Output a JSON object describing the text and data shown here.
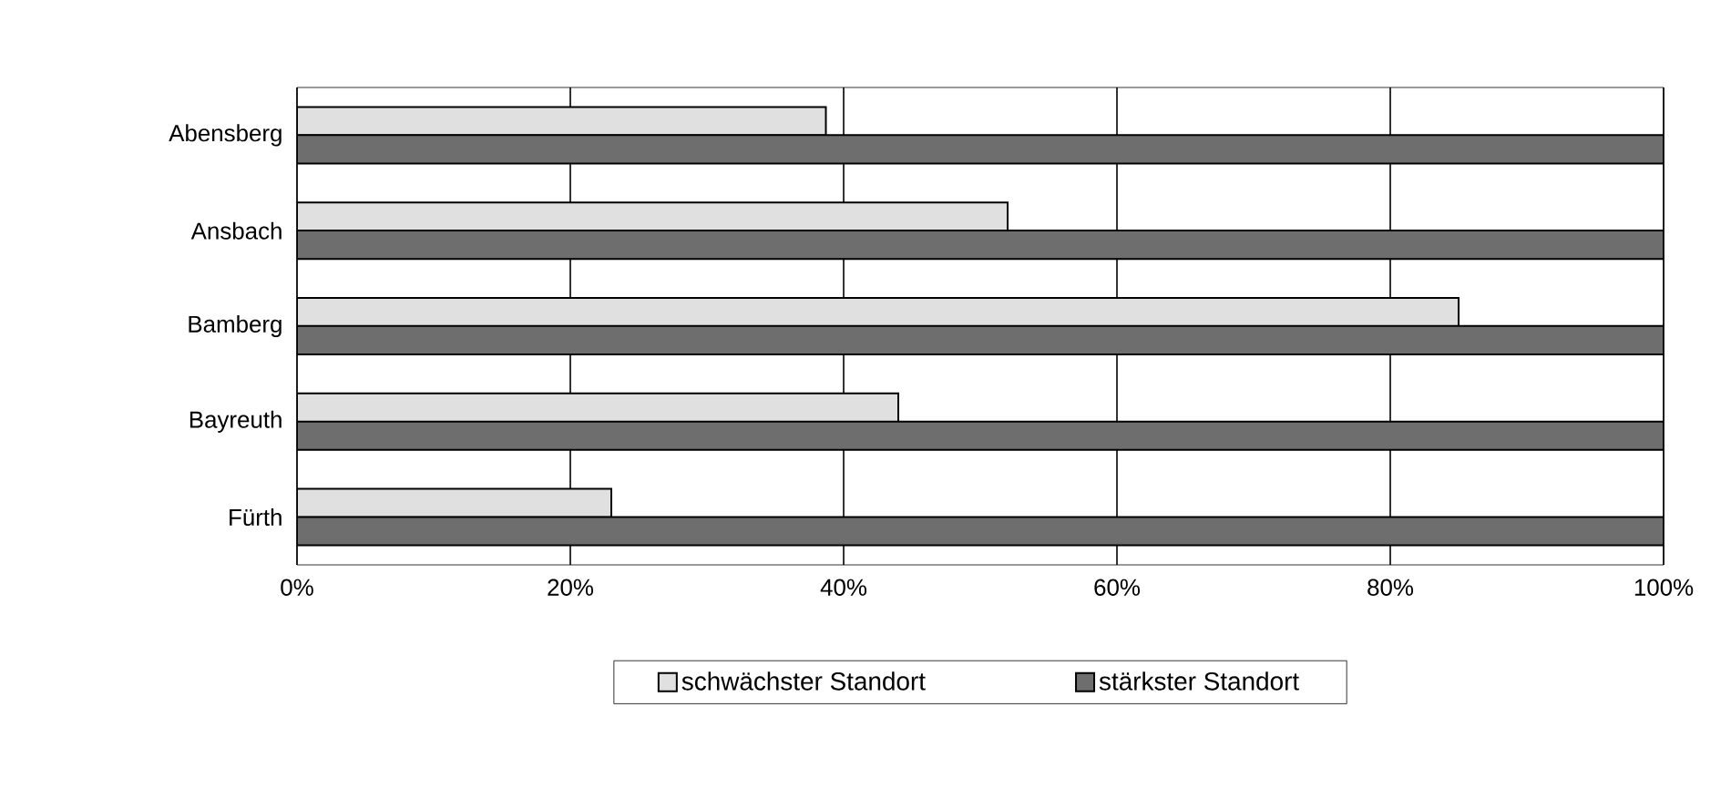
{
  "chart_data": {
    "type": "bar",
    "orientation": "horizontal",
    "categories": [
      "Abensberg",
      "Ansbach",
      "Bamberg",
      "Bayreuth",
      "Fürth"
    ],
    "series": [
      {
        "name": "schwächster Standort",
        "color": "#e0e0e0",
        "values": [
          38.7,
          52,
          85,
          44,
          23
        ]
      },
      {
        "name": "stärkster Standort",
        "color": "#6e6e6e",
        "values": [
          100,
          100,
          100,
          100,
          100
        ]
      }
    ],
    "xlim": [
      0,
      100
    ],
    "xticks": [
      {
        "value": 0,
        "label": "0%"
      },
      {
        "value": 20,
        "label": "20%"
      },
      {
        "value": 40,
        "label": "40%"
      },
      {
        "value": 60,
        "label": "60%"
      },
      {
        "value": 80,
        "label": "80%"
      },
      {
        "value": 100,
        "label": "100%"
      }
    ],
    "grid": "x",
    "legend": "bottom"
  }
}
